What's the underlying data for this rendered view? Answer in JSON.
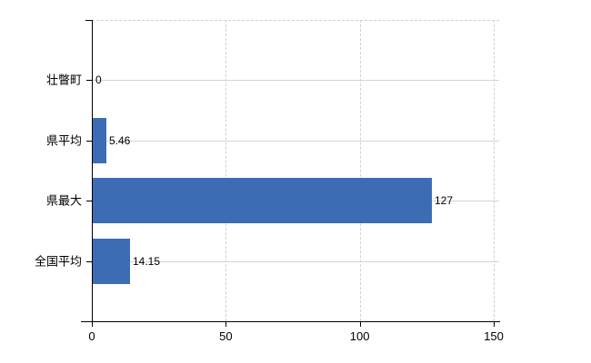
{
  "chart_data": {
    "type": "bar",
    "orientation": "horizontal",
    "title": "",
    "xlabel": "",
    "ylabel": "",
    "categories": [
      "壮瞥町",
      "県平均",
      "県最大",
      "全国平均"
    ],
    "values": [
      0,
      5.46,
      127,
      14.15
    ],
    "value_labels": [
      "0",
      "5.46",
      "127",
      "14.15"
    ],
    "xticks": [
      "0",
      "50",
      "100",
      "150"
    ],
    "xtick_values": [
      0,
      50,
      100,
      150
    ],
    "xlim": [
      0,
      152
    ],
    "grid": {
      "vertical": "on-dashed",
      "horizontal": "on-per-category"
    },
    "legend": "none",
    "bar_color": "#3c6cb4"
  },
  "colors": {
    "bar": "#3c6cb4",
    "axis": "#000000",
    "grid_horizontal": "#cfd9cf",
    "grid_vertical": "#d7cbd7",
    "background": "#ffffff",
    "text": "#000000"
  }
}
